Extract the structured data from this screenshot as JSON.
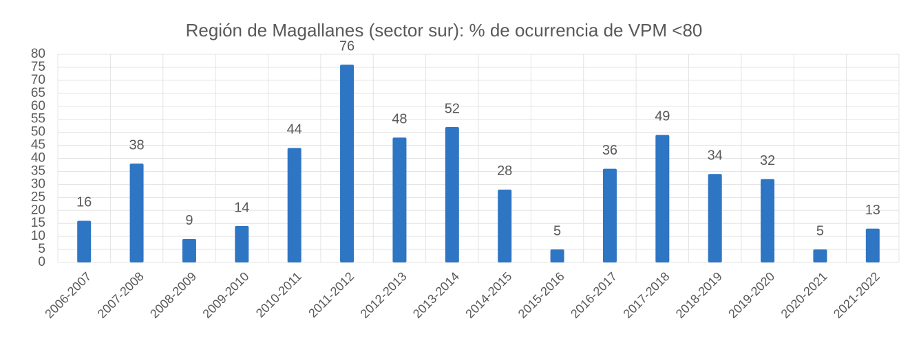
{
  "chart_data": {
    "type": "bar",
    "title": "Región de Magallanes (sector sur): % de ocurrencia de VPM <80",
    "categories": [
      "2006-2007",
      "2007-2008",
      "2008-2009",
      "2009-2010",
      "2010-2011",
      "2011-2012",
      "2012-2013",
      "2013-2014",
      "2014-2015",
      "2015-2016",
      "2016-2017",
      "2017-2018",
      "2018-2019",
      "2019-2020",
      "2020-2021",
      "2021-2022"
    ],
    "values": [
      16,
      38,
      9,
      14,
      44,
      76,
      48,
      52,
      28,
      5,
      36,
      49,
      34,
      32,
      5,
      13
    ],
    "color": "#2e75c3",
    "ylim": [
      0,
      80
    ],
    "yticks": [
      0,
      5,
      10,
      15,
      20,
      25,
      30,
      35,
      40,
      45,
      50,
      55,
      60,
      65,
      70,
      75,
      80
    ],
    "grid": true
  }
}
